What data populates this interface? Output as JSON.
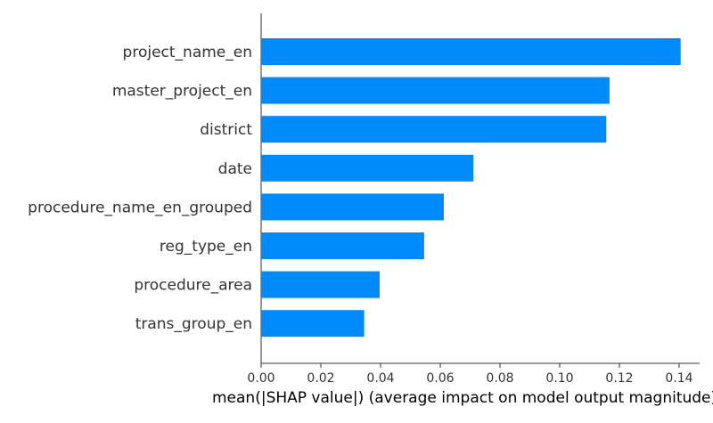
{
  "chart_data": {
    "type": "bar",
    "orientation": "horizontal",
    "categories": [
      "project_name_en",
      "master_project_en",
      "district",
      "date",
      "procedure_name_en_grouped",
      "reg_type_en",
      "procedure_area",
      "trans_group_en"
    ],
    "values": [
      0.1405,
      0.1167,
      0.1156,
      0.0711,
      0.0612,
      0.0546,
      0.0397,
      0.0345
    ],
    "xlabel": "mean(|SHAP value|) (average impact on model output magnitude)",
    "ylabel": "",
    "xlim": [
      0,
      0.147
    ],
    "xticks": [
      "0.00",
      "0.02",
      "0.04",
      "0.06",
      "0.08",
      "0.10",
      "0.12",
      "0.14"
    ],
    "grid": false,
    "bar_color": "#008bfb",
    "axis_color": "#333333"
  }
}
